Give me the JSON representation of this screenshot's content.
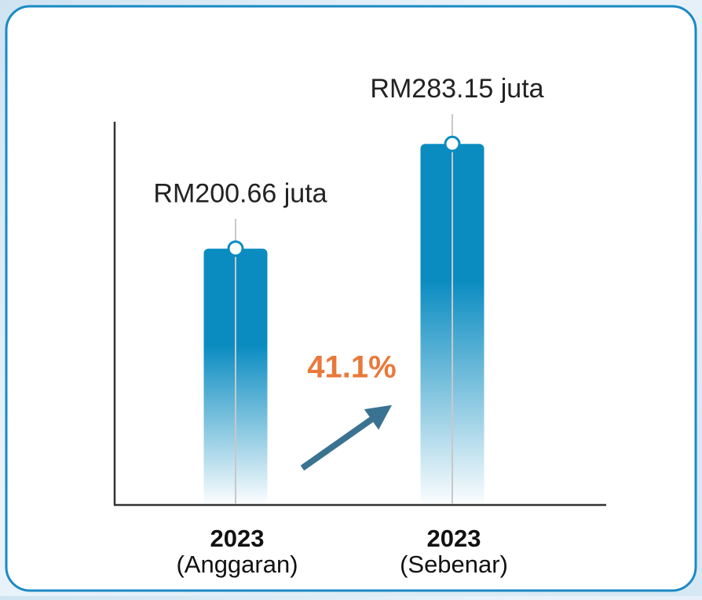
{
  "chart_data": {
    "type": "bar",
    "categories": [
      "2023",
      "2023"
    ],
    "category_notes": [
      "(Anggaran)",
      "(Sebenar)"
    ],
    "values": [
      200.66,
      283.15
    ],
    "value_labels": [
      "RM200.66 juta",
      "RM283.15 juta"
    ],
    "color": "#0a8cc1",
    "ylim": [
      0,
      300
    ],
    "annotation": "41.1%"
  }
}
